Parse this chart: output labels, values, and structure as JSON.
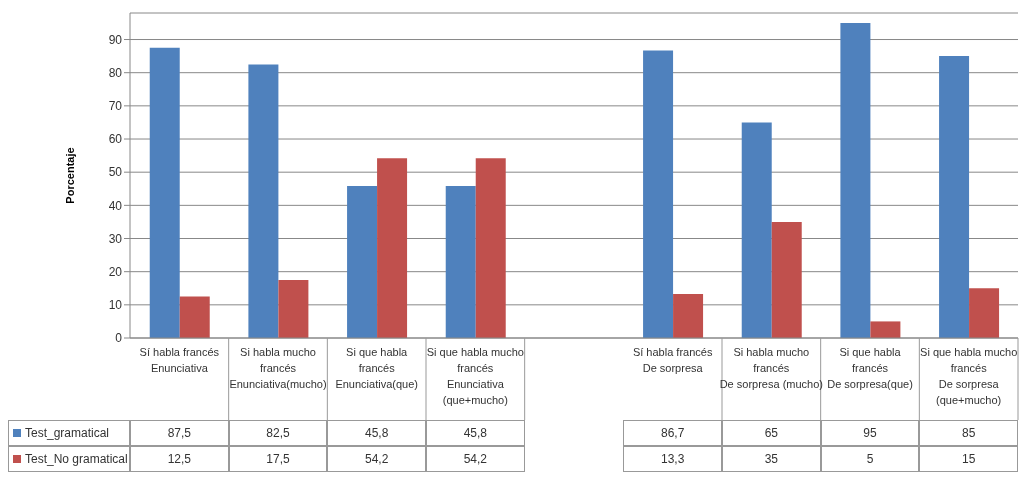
{
  "chart_data": {
    "type": "bar",
    "ylabel": "Porcentaje",
    "categories": [
      "Sí habla francés\nEnunciativa",
      "Si habla mucho francés\nEnunciativa(mucho)",
      "Si que habla francés\nEnunciativa(que)",
      "Si que habla mucho francés\nEnunciativa (que+mucho)",
      null,
      "Sí habla francés\nDe sorpresa",
      "Si habla mucho francés\nDe sorpresa (mucho)",
      "Si que habla francés\nDe sorpresa(que)",
      "Si que habla mucho francés\nDe sorpresa (que+mucho)"
    ],
    "series": [
      {
        "name": "Test_gramatical",
        "color": "#4f81bd",
        "values": [
          87.5,
          82.5,
          45.8,
          45.8,
          null,
          86.7,
          65,
          95,
          85
        ],
        "value_labels": [
          "87,5",
          "82,5",
          "45,8",
          "45,8",
          null,
          "86,7",
          "65",
          "95",
          "85"
        ]
      },
      {
        "name": "Test_No gramatical",
        "color": "#c0504d",
        "values": [
          12.5,
          17.5,
          54.2,
          54.2,
          null,
          13.3,
          35,
          5,
          15
        ],
        "value_labels": [
          "12,5",
          "17,5",
          "54,2",
          "54,2",
          null,
          "13,3",
          "35",
          "5",
          "15"
        ]
      }
    ],
    "ylim": [
      0,
      98
    ],
    "yticks": [
      0,
      10,
      20,
      30,
      40,
      50,
      60,
      70,
      80,
      90
    ],
    "grid": "y",
    "legend": "bottom left"
  }
}
